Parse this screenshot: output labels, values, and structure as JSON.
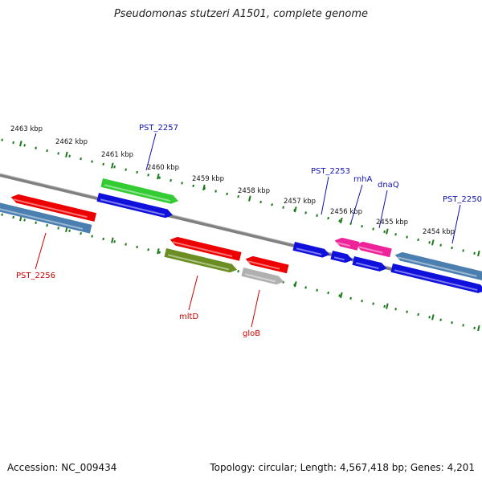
{
  "title": "Pseudomonas stutzeri A1501, complete genome",
  "footer": {
    "accession": "Accession: NC_009434",
    "summary": "Topology: circular; Length: 4,567,418 bp; Genes: 4,201"
  },
  "colors": {
    "backbone": "#808080",
    "tick": "#1a7a1a",
    "label_blue": "#1010b0",
    "label_red": "#cc0000"
  },
  "scale_labels": [
    "2463 kbp",
    "2462 kbp",
    "2461 kbp",
    "2460 kbp",
    "2459 kbp",
    "2458 kbp",
    "2457 kbp",
    "2456 kbp",
    "2455 kbp",
    "2454 kbp"
  ],
  "genes": [
    {
      "id": "g1",
      "color": "#ee0000",
      "strand": "left"
    },
    {
      "id": "g2",
      "color": "#ee0000",
      "strand": "left"
    },
    {
      "id": "g3",
      "color": "#4a7fb0",
      "strand": "left"
    },
    {
      "id": "g4",
      "color": "#33cc33",
      "strand": "right"
    },
    {
      "id": "g5",
      "color": "#1010dd",
      "strand": "right"
    },
    {
      "id": "g6",
      "color": "#ee0000",
      "strand": "left"
    },
    {
      "id": "g7",
      "color": "#6b8e23",
      "strand": "right"
    },
    {
      "id": "g8",
      "color": "#ee0000",
      "strand": "left"
    },
    {
      "id": "g9",
      "color": "#b0b0b0",
      "strand": "right"
    },
    {
      "id": "g10",
      "color": "#1010dd",
      "strand": "right"
    },
    {
      "id": "g11",
      "color": "#1010dd",
      "strand": "right"
    },
    {
      "id": "g12",
      "color": "#ee2299",
      "strand": "left"
    },
    {
      "id": "g13",
      "color": "#1010dd",
      "strand": "right"
    },
    {
      "id": "g14",
      "color": "#ee2299",
      "strand": "left"
    },
    {
      "id": "g15",
      "color": "#4a7fb0",
      "strand": "left"
    },
    {
      "id": "g16",
      "color": "#1010dd",
      "strand": "right"
    }
  ],
  "labels": [
    {
      "id": "PST_2257",
      "text": "PST_2257",
      "color": "#1010b0"
    },
    {
      "id": "PST_2256",
      "text": "PST_2256",
      "color": "#cc0000"
    },
    {
      "id": "mltD",
      "text": "mltD",
      "color": "#cc0000"
    },
    {
      "id": "gloB",
      "text": "gloB",
      "color": "#cc0000"
    },
    {
      "id": "PST_2253",
      "text": "PST_2253",
      "color": "#1010b0"
    },
    {
      "id": "rnhA",
      "text": "rnhA",
      "color": "#1010b0"
    },
    {
      "id": "dnaQ",
      "text": "dnaQ",
      "color": "#1010b0"
    },
    {
      "id": "PST_2250",
      "text": "PST_2250",
      "color": "#1010b0"
    }
  ]
}
